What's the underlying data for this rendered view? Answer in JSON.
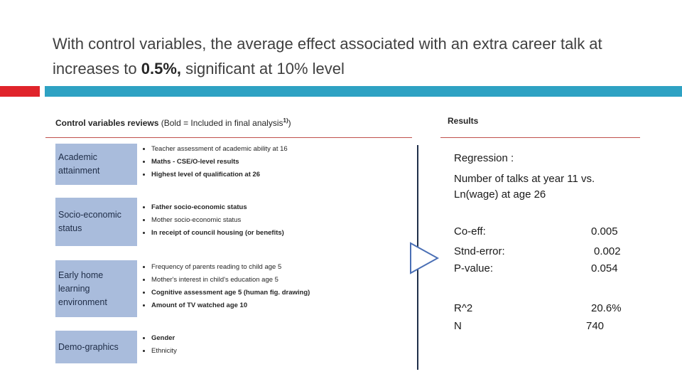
{
  "slide": {
    "title_part1": "With control variables, the average effect associated with an extra career talk at increases to ",
    "title_bold": "0.5%,",
    "title_part2": " significant at 10% level"
  },
  "left_panel": {
    "heading_bold": "Control variables reviews",
    "heading_normal": " (Bold = Included in final analysis",
    "heading_sup": "1)",
    "heading_close": ")",
    "categories": [
      {
        "label": "Academic attainment",
        "items": [
          {
            "text": "Teacher assessment of academic ability at 16",
            "bold": false
          },
          {
            "text": "Maths - CSE/O-level results",
            "bold": true
          },
          {
            "text": "Highest level of qualification at 26",
            "bold": true
          }
        ]
      },
      {
        "label": "Socio-economic status",
        "items": [
          {
            "text": "Father socio-economic status",
            "bold": true
          },
          {
            "text": "Mother socio-economic status",
            "bold": false
          },
          {
            "text": "In receipt of council housing (or benefits)",
            "bold": true
          }
        ]
      },
      {
        "label": "Early home learning environment",
        "items": [
          {
            "text": "Frequency of parents reading to child age 5",
            "bold": false
          },
          {
            "text": "Mother's interest in child's education age 5",
            "bold": false
          },
          {
            "text": "Cognitive assessment age 5 (human fig. drawing)",
            "bold": true
          },
          {
            "text": "Amount of TV watched age 10",
            "bold": true
          }
        ]
      },
      {
        "label": "Demo-graphics",
        "items": [
          {
            "text": "Gender",
            "bold": true
          },
          {
            "text": "Ethnicity",
            "bold": false
          }
        ]
      }
    ]
  },
  "right_panel": {
    "heading": "Results",
    "regression_label": "Regression :",
    "regression_line1": "Number of talks at year 11 vs.",
    "regression_line2": "Ln(wage) at age 26",
    "stats": [
      {
        "label": "Co-eff:",
        "value": "0.005"
      },
      {
        "label": "Stnd-error:",
        "value": "0.002"
      },
      {
        "label": "P-value:",
        "value": "0.054"
      },
      {
        "label": "R^2",
        "value": "20.6%"
      },
      {
        "label": "N",
        "value": "740"
      }
    ]
  },
  "colors": {
    "accent_red": "#e0242b",
    "accent_blue": "#2ea2c3",
    "category_fill": "#a9bcdc",
    "rule_red": "#c0504d"
  }
}
